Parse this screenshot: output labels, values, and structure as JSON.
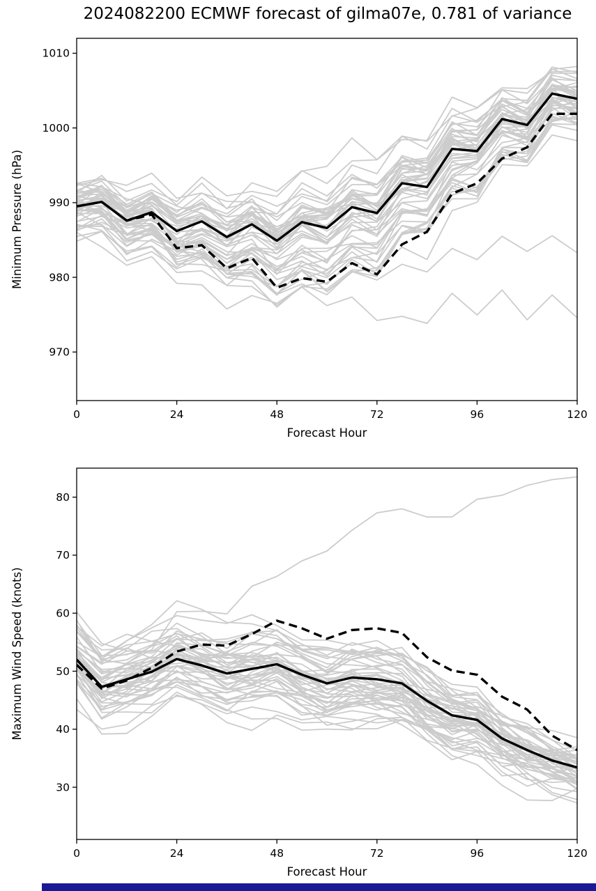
{
  "title": "2024082200 ECMWF forecast of gilma07e, 0.781 of variance",
  "colors": {
    "background": "#ffffff",
    "ensemble_line": "#cccccc",
    "main_line": "#000000",
    "axis": "#000000",
    "bottom_bar": "#1a1a96"
  },
  "chart_data": [
    {
      "type": "line",
      "name": "minimum-pressure",
      "xlabel": "Forecast Hour",
      "ylabel": "Minimum Pressure (hPa)",
      "xlim": [
        0,
        120
      ],
      "ylim": [
        963.5,
        1012
      ],
      "xticks": [
        0,
        24,
        48,
        72,
        96,
        120
      ],
      "yticks": [
        970,
        980,
        990,
        1000,
        1010
      ],
      "grid": false,
      "legend": "none",
      "x": [
        0,
        6,
        12,
        18,
        24,
        30,
        36,
        42,
        48,
        54,
        60,
        66,
        72,
        78,
        84,
        90,
        96,
        102,
        108,
        114,
        120
      ],
      "series": [
        {
          "name": "ensemble_mean",
          "style": "solid",
          "color": "#000000",
          "values": [
            989.5,
            990.1,
            987.6,
            988.7,
            986.2,
            987.5,
            985.4,
            987.1,
            984.9,
            987.4,
            986.6,
            989.4,
            988.6,
            992.6,
            992.1,
            997.2,
            996.9,
            1001.2,
            1000.4,
            1004.6,
            1003.9
          ]
        },
        {
          "name": "control",
          "style": "dashed",
          "color": "#000000",
          "values": [
            989.5,
            990.1,
            987.6,
            988.4,
            983.9,
            984.3,
            981.2,
            982.6,
            978.6,
            979.9,
            979.4,
            981.9,
            980.4,
            984.4,
            986.1,
            991.2,
            992.6,
            995.9,
            997.4,
            1001.9,
            1001.9
          ]
        }
      ],
      "ensemble": {
        "count": 50,
        "seed": 20240822,
        "start_spread": 6,
        "mid_spread": 9,
        "end_spread": 6,
        "mid_skew_low": 1.6,
        "walk_step": 1.6,
        "clamp": [
          964.5,
          1011.5
        ],
        "outliers": [
          {
            "index": 5,
            "end_offset": -32
          },
          {
            "index": 11,
            "end_offset": -17
          }
        ]
      }
    },
    {
      "type": "line",
      "name": "maximum-wind-speed",
      "xlabel": "Forecast Hour",
      "ylabel": "Maximum Wind Speed (knots)",
      "xlim": [
        0,
        120
      ],
      "ylim": [
        21,
        85
      ],
      "xticks": [
        0,
        24,
        48,
        72,
        96,
        120
      ],
      "yticks": [
        30,
        40,
        50,
        60,
        70,
        80
      ],
      "grid": false,
      "legend": "none",
      "x": [
        0,
        6,
        12,
        18,
        24,
        30,
        36,
        42,
        48,
        54,
        60,
        66,
        72,
        78,
        84,
        90,
        96,
        102,
        108,
        114,
        120
      ],
      "series": [
        {
          "name": "ensemble_mean",
          "style": "solid",
          "color": "#000000",
          "values": [
            52.0,
            47.3,
            48.6,
            49.9,
            52.1,
            51.0,
            49.6,
            50.4,
            51.2,
            49.4,
            47.9,
            48.9,
            48.6,
            47.9,
            44.9,
            42.4,
            41.6,
            38.4,
            36.4,
            34.6,
            33.4
          ]
        },
        {
          "name": "control",
          "style": "dashed",
          "color": "#000000",
          "values": [
            51.1,
            47.0,
            48.4,
            50.6,
            53.4,
            54.6,
            54.4,
            56.4,
            58.7,
            57.4,
            55.6,
            57.1,
            57.4,
            56.6,
            52.4,
            50.1,
            49.4,
            45.6,
            43.4,
            38.9,
            36.4
          ]
        }
      ],
      "ensemble": {
        "count": 50,
        "seed": 19920822,
        "start_spread": 10,
        "mid_spread": 9,
        "end_spread": 6.5,
        "mid_skew_low": 1.2,
        "walk_step": 2.0,
        "clamp": [
          24.5,
          83.5
        ],
        "outliers": [
          {
            "index": 3,
            "end_offset": 48
          }
        ]
      }
    }
  ]
}
